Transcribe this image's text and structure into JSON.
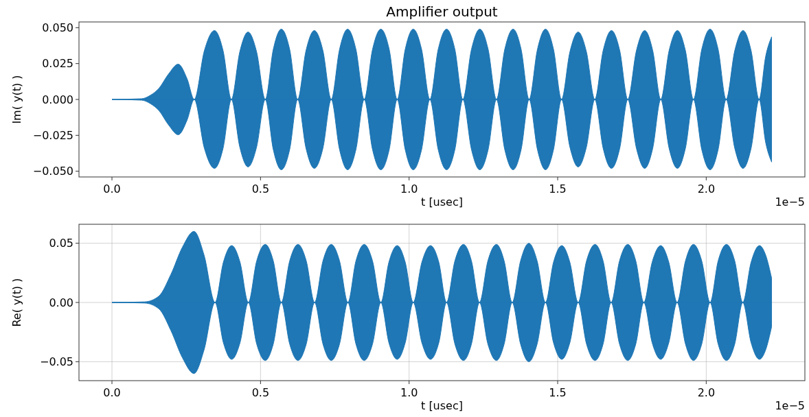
{
  "chart_data": [
    {
      "type": "area",
      "title": "Amplifier output",
      "xlabel": "t [usec]",
      "ylabel": "Im( y(t) )",
      "annotations": [
        "1e−5"
      ],
      "xlim": [
        -0.111,
        2.332
      ],
      "xticks": [
        {
          "value": 0,
          "label": "0.0"
        },
        {
          "value": 0.5,
          "label": "0.5"
        },
        {
          "value": 1,
          "label": "1.0"
        },
        {
          "value": 1.5,
          "label": "1.5"
        },
        {
          "value": 2,
          "label": "2.0"
        }
      ],
      "ylim": [
        -0.054,
        0.054
      ],
      "yticks": [
        {
          "value": -0.05,
          "label": "−0.050"
        },
        {
          "value": -0.025,
          "label": "−0.025"
        },
        {
          "value": 0,
          "label": "0.000"
        },
        {
          "value": 0.025,
          "label": "0.025"
        },
        {
          "value": 0.05,
          "label": "0.050"
        }
      ],
      "x": [
        0,
        0.1,
        0.13,
        0.158,
        0.19,
        0.223,
        0.253,
        0.277,
        0.311,
        0.345,
        0.374,
        0.402,
        0.43,
        0.458,
        0.487,
        0.516,
        0.543,
        0.57,
        0.598,
        0.625,
        0.653,
        0.681,
        0.71,
        0.738,
        0.766,
        0.793,
        0.821,
        0.849,
        0.877,
        0.905,
        0.933,
        0.96,
        0.987,
        1.014,
        1.042,
        1.07,
        1.098,
        1.126,
        1.154,
        1.181,
        1.21,
        1.238,
        1.266,
        1.294,
        1.322,
        1.35,
        1.377,
        1.404,
        1.432,
        1.459,
        1.486,
        1.513,
        1.541,
        1.569,
        1.597,
        1.625,
        1.653,
        1.681,
        1.709,
        1.736,
        1.765,
        1.793,
        1.82,
        1.847,
        1.875,
        1.903,
        1.93,
        1.957,
        1.985,
        2.013,
        2.04,
        2.067,
        2.096,
        2.124,
        2.151,
        2.178,
        2.2,
        2.22
      ],
      "series": [
        {
          "color": "#1f77b4",
          "values": [
            0,
            0.0005,
            0.003,
            0.0077,
            0.0176,
            0.0246,
            0.0143,
            0,
            0.034,
            0.048,
            0.034,
            0,
            0.033,
            0.047,
            0.033,
            0,
            0.035,
            0.049,
            0.035,
            0,
            0.034,
            0.048,
            0.034,
            0,
            0.035,
            0.049,
            0.035,
            0,
            0.035,
            0.049,
            0.035,
            0,
            0.035,
            0.049,
            0.035,
            0,
            0.035,
            0.049,
            0.035,
            0,
            0.035,
            0.049,
            0.035,
            0,
            0.035,
            0.049,
            0.035,
            0,
            0.035,
            0.049,
            0.035,
            0,
            0.033,
            0.047,
            0.033,
            0,
            0.034,
            0.048,
            0.034,
            0,
            0.034,
            0.048,
            0.034,
            0,
            0.034,
            0.048,
            0.034,
            0,
            0.035,
            0.049,
            0.035,
            0,
            0.034,
            0.048,
            0.034,
            0,
            0.03,
            0.0436
          ]
        },
        {
          "color": "#1f77b5",
          "values": [
            0,
            -0.0005,
            -0.003,
            -0.0077,
            -0.0176,
            -0.0246,
            -0.0143,
            0,
            -0.034,
            -0.048,
            -0.034,
            0,
            -0.033,
            -0.047,
            -0.033,
            0,
            -0.035,
            -0.049,
            -0.035,
            0,
            -0.034,
            -0.048,
            -0.034,
            0,
            -0.035,
            -0.049,
            -0.035,
            0,
            -0.035,
            -0.049,
            -0.035,
            0,
            -0.035,
            -0.049,
            -0.035,
            0,
            -0.035,
            -0.049,
            -0.035,
            0,
            -0.035,
            -0.049,
            -0.035,
            0,
            -0.035,
            -0.049,
            -0.035,
            0,
            -0.035,
            -0.049,
            -0.035,
            0,
            -0.033,
            -0.047,
            -0.033,
            0,
            -0.034,
            -0.048,
            -0.034,
            0,
            -0.034,
            -0.048,
            -0.034,
            0,
            -0.034,
            -0.048,
            -0.034,
            0,
            -0.035,
            -0.049,
            -0.035,
            0,
            -0.034,
            -0.048,
            -0.034,
            0,
            -0.03,
            -0.0436
          ]
        }
      ]
    },
    {
      "type": "area",
      "xlabel": "t [usec]",
      "ylabel": "Re( y(t) )",
      "grid": true,
      "annotations": [
        "1e−5"
      ],
      "xlim": [
        -0.111,
        2.332
      ],
      "xticks": [
        {
          "value": 0,
          "label": "0.0"
        },
        {
          "value": 0.5,
          "label": "0.5"
        },
        {
          "value": 1,
          "label": "1.0"
        },
        {
          "value": 1.5,
          "label": "1.5"
        },
        {
          "value": 2,
          "label": "2.0"
        }
      ],
      "ylim": [
        -0.066,
        0.066
      ],
      "yticks": [
        {
          "value": -0.05,
          "label": "−0.05"
        },
        {
          "value": 0,
          "label": "0.00"
        },
        {
          "value": 0.05,
          "label": "0.05"
        }
      ],
      "x": [
        0,
        0.11,
        0.158,
        0.198,
        0.237,
        0.276,
        0.31,
        0.347,
        0.375,
        0.403,
        0.431,
        0.459,
        0.487,
        0.516,
        0.543,
        0.57,
        0.598,
        0.626,
        0.654,
        0.682,
        0.71,
        0.738,
        0.766,
        0.794,
        0.821,
        0.849,
        0.877,
        0.905,
        0.932,
        0.96,
        0.987,
        1.014,
        1.043,
        1.072,
        1.1,
        1.126,
        1.154,
        1.183,
        1.21,
        1.237,
        1.265,
        1.294,
        1.32,
        1.347,
        1.375,
        1.403,
        1.431,
        1.459,
        1.486,
        1.514,
        1.541,
        1.569,
        1.597,
        1.626,
        1.653,
        1.68,
        1.708,
        1.736,
        1.763,
        1.79,
        1.818,
        1.847,
        1.874,
        1.902,
        1.93,
        1.957,
        1.985,
        2.013,
        2.04,
        2.068,
        2.096,
        2.123,
        2.151,
        2.179,
        2.2,
        2.22
      ],
      "series": [
        {
          "color": "#1f77b4",
          "values": [
            0,
            0.0005,
            0.0054,
            0.0235,
            0.0466,
            0.06,
            0.04,
            0,
            0.034,
            0.048,
            0.034,
            0,
            0.035,
            0.049,
            0.035,
            0,
            0.035,
            0.049,
            0.035,
            0,
            0.035,
            0.049,
            0.035,
            0,
            0.035,
            0.049,
            0.035,
            0,
            0.034,
            0.048,
            0.034,
            0,
            0.034,
            0.048,
            0.034,
            0,
            0.035,
            0.049,
            0.035,
            0,
            0.035,
            0.049,
            0.035,
            0,
            0.035,
            0.05,
            0.035,
            0,
            0.034,
            0.048,
            0.034,
            0,
            0.035,
            0.049,
            0.035,
            0,
            0.035,
            0.049,
            0.035,
            0,
            0.034,
            0.048,
            0.034,
            0,
            0.035,
            0.049,
            0.035,
            0,
            0.035,
            0.049,
            0.035,
            0,
            0.034,
            0.048,
            0.04,
            0.0206
          ]
        },
        {
          "color": "#1f77b5",
          "values": [
            0,
            -0.0005,
            -0.0054,
            -0.0235,
            -0.0466,
            -0.06,
            -0.04,
            0,
            -0.034,
            -0.048,
            -0.034,
            0,
            -0.035,
            -0.049,
            -0.035,
            0,
            -0.035,
            -0.049,
            -0.035,
            0,
            -0.035,
            -0.049,
            -0.035,
            0,
            -0.035,
            -0.049,
            -0.035,
            0,
            -0.034,
            -0.048,
            -0.034,
            0,
            -0.034,
            -0.048,
            -0.034,
            0,
            -0.035,
            -0.049,
            -0.035,
            0,
            -0.035,
            -0.049,
            -0.035,
            0,
            -0.035,
            -0.05,
            -0.035,
            0,
            -0.034,
            -0.048,
            -0.034,
            0,
            -0.035,
            -0.049,
            -0.035,
            0,
            -0.035,
            -0.049,
            -0.035,
            0,
            -0.034,
            -0.048,
            -0.034,
            0,
            -0.035,
            -0.049,
            -0.035,
            0,
            -0.035,
            -0.049,
            -0.035,
            0,
            -0.034,
            -0.048,
            -0.04,
            -0.0206
          ]
        }
      ]
    }
  ]
}
